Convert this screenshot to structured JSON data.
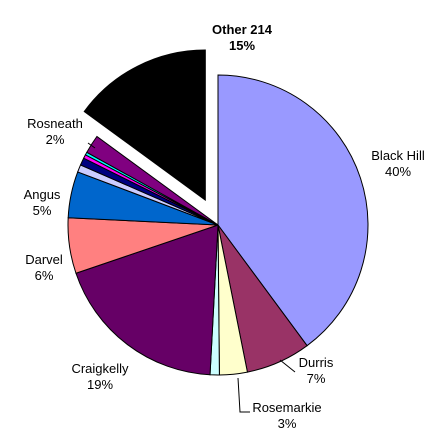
{
  "chart_data": {
    "type": "pie",
    "title": "",
    "slices": [
      {
        "label": "Black Hill",
        "value": 40,
        "value_label": "40%",
        "color": "#9999ff"
      },
      {
        "label": "Durris",
        "value": 7,
        "value_label": "7%",
        "color": "#993366"
      },
      {
        "label": "Rosemarkie",
        "value": 3,
        "value_label": "3%",
        "color": "#ffffcc"
      },
      {
        "label": "",
        "value": 1,
        "value_label": "",
        "color": "#ccffff"
      },
      {
        "label": "Craigkelly",
        "value": 19,
        "value_label": "19%",
        "color": "#660066"
      },
      {
        "label": "Darvel",
        "value": 6,
        "value_label": "6%",
        "color": "#ff8080"
      },
      {
        "label": "Angus",
        "value": 5,
        "value_label": "5%",
        "color": "#0066cc"
      },
      {
        "label": "",
        "value": 0.8,
        "value_label": "",
        "color": "#ccccff"
      },
      {
        "label": "",
        "value": 0.8,
        "value_label": "",
        "color": "#000080"
      },
      {
        "label": "",
        "value": 0.4,
        "value_label": "",
        "color": "#ff00ff"
      },
      {
        "label": "",
        "value": 0.3,
        "value_label": "",
        "color": "#00ffff"
      },
      {
        "label": "Rosneath",
        "value": 2,
        "value_label": "2%",
        "color": "#800080"
      },
      {
        "label": "Other 214",
        "value": 15,
        "value_label": "15%",
        "color": "#000000",
        "exploded": true,
        "bold": true
      }
    ],
    "legend": "none"
  }
}
